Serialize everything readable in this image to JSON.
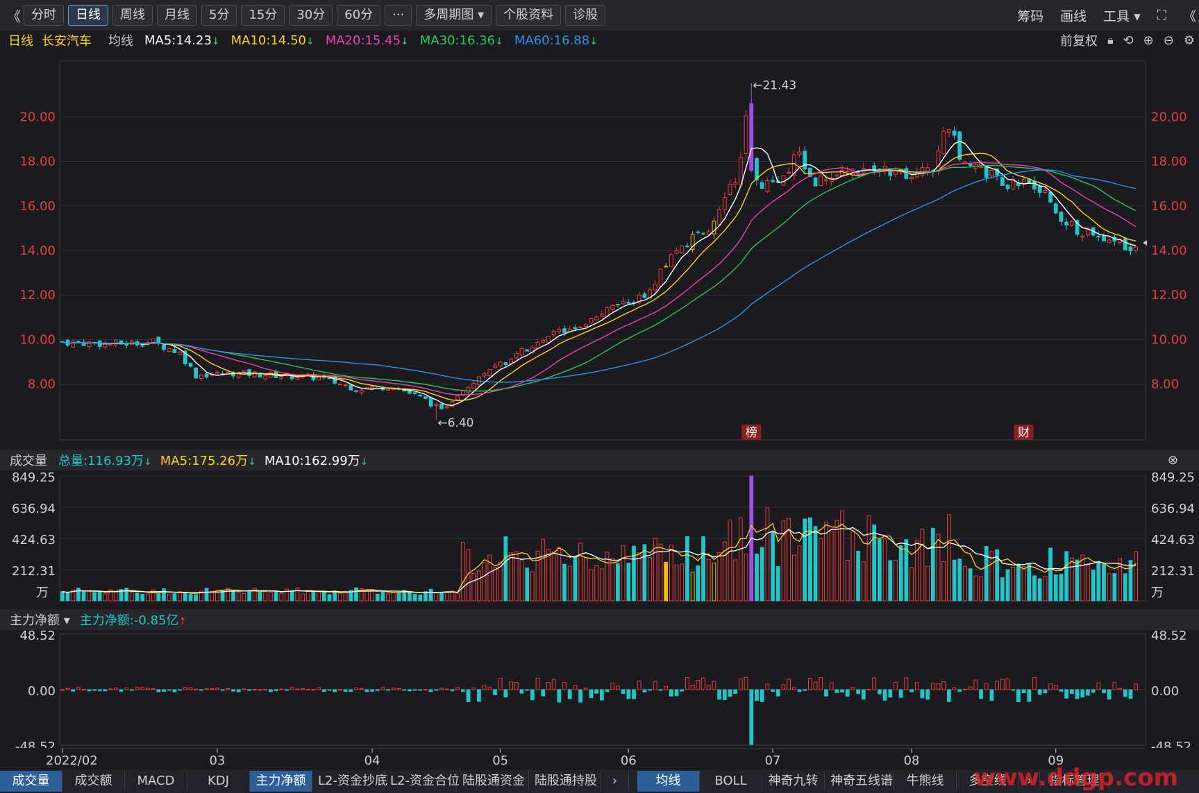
{
  "toolbar": {
    "back": "《",
    "periods": [
      {
        "label": "分时",
        "active": false
      },
      {
        "label": "日线",
        "active": true
      },
      {
        "label": "周线",
        "active": false
      },
      {
        "label": "月线",
        "active": false
      },
      {
        "label": "5分",
        "active": false
      },
      {
        "label": "15分",
        "active": false
      },
      {
        "label": "30分",
        "active": false
      },
      {
        "label": "60分",
        "active": false
      },
      {
        "label": "···",
        "active": false
      },
      {
        "label": "多周期图 ▾",
        "active": false
      },
      {
        "label": "个股资料",
        "active": false
      },
      {
        "label": "诊股",
        "active": false
      }
    ],
    "right": [
      "筹码",
      "画线",
      "工具 ▾",
      "⛶",
      "《"
    ]
  },
  "info": {
    "period": "日线",
    "stock": "长安汽车",
    "ma_title": "均线",
    "ma": [
      {
        "label": "MA5:14.23",
        "color": "#ffffff"
      },
      {
        "label": "MA10:14.50",
        "color": "#ffd21e"
      },
      {
        "label": "MA20:15.45",
        "color": "#ee3fb4"
      },
      {
        "label": "MA30:16.36",
        "color": "#26c75c"
      },
      {
        "label": "MA60:16.88",
        "color": "#2e90ea"
      }
    ],
    "adjust": "前复权"
  },
  "volume_header": {
    "title": "成交量",
    "items": [
      {
        "label": "总量:116.93万",
        "color": "#21c6c9"
      },
      {
        "label": "MA5:175.26万",
        "color": "#ffd21e"
      },
      {
        "label": "MA10:162.99万",
        "color": "#ffffff"
      }
    ]
  },
  "flow_header": {
    "title": "主力净额 ▾",
    "value": "主力净额:-0.85亿"
  },
  "chart_data": [
    {
      "type": "candlestick",
      "name": "price",
      "ylim": [
        5.5,
        22.5
      ],
      "yticks": [
        "20.00",
        "18.00",
        "16.00",
        "14.00",
        "12.00",
        "10.00",
        "8.00"
      ],
      "high_label": "←21.43",
      "low_label": "←6.40",
      "markers": [
        "榜",
        "财"
      ],
      "colors": {
        "up": "#ee3b3b",
        "down": "#21c6c9",
        "limit": "#f0c000",
        "spike": "#a050e8"
      }
    },
    {
      "type": "bar",
      "name": "volume",
      "yticks": [
        "849.25",
        "636.94",
        "424.63",
        "212.31"
      ],
      "unit": "万"
    },
    {
      "type": "bar",
      "name": "main_net_flow",
      "yticks": [
        "48.52",
        "0.00",
        "-48.52"
      ]
    }
  ],
  "xaxis": {
    "labels": [
      "2022/02",
      "03",
      "04",
      "05",
      "06",
      "07",
      "08",
      "09"
    ]
  },
  "tabs_left": [
    {
      "label": "成交量",
      "sel": true
    },
    {
      "label": "成交额",
      "sel": false
    },
    {
      "label": "MACD",
      "sel": false
    },
    {
      "label": "KDJ",
      "sel": false
    },
    {
      "label": "主力净额",
      "sel": true
    },
    {
      "label": "L2-资金抄底",
      "sel": false
    },
    {
      "label": "L2-资金合位",
      "sel": false
    },
    {
      "label": "陆股通资金",
      "sel": false
    },
    {
      "label": "陆股通持股",
      "sel": false
    }
  ],
  "tabs_right": [
    {
      "label": "均线",
      "sel": true
    },
    {
      "label": "BOLL",
      "sel": false
    },
    {
      "label": "神奇九转",
      "sel": false
    },
    {
      "label": "神奇五线谱",
      "sel": false
    },
    {
      "label": "牛熊线",
      "sel": false
    },
    {
      "label": "多空线",
      "sel": false
    }
  ],
  "tabs_end": "指标管理",
  "watermark": "www.ddgp.com"
}
